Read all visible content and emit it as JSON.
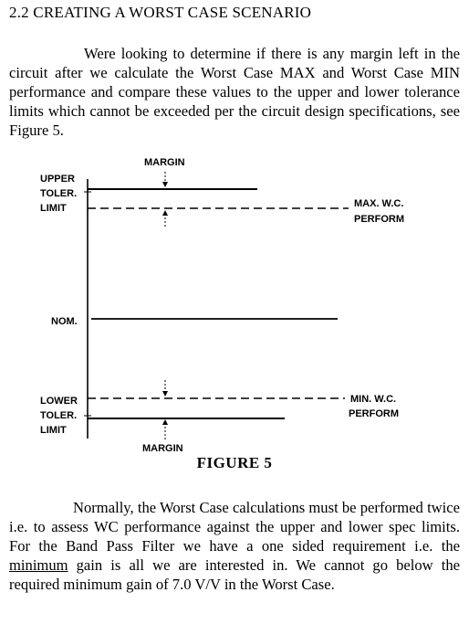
{
  "section": {
    "heading": "2.2 CREATING A WORST CASE SCENARIO"
  },
  "paragraph1": "Were looking to determine if there is any margin left in the circuit after we calculate the Worst Case MAX and Worst Case MIN performance and compare these values to the upper and lower tolerance limits which cannot be exceeded per the circuit design specifications, see Figure 5.",
  "figure": {
    "caption": "FIGURE 5",
    "labels": {
      "margin_top": "MARGIN",
      "upper_1": "UPPER",
      "upper_2": "TOLER.",
      "upper_3": "LIMIT",
      "max_1": "MAX. W.C.",
      "max_2": "PERFORM",
      "nom": "NOM.",
      "lower_1": "LOWER",
      "lower_2": "TOLER.",
      "lower_3": "LIMIT",
      "min_1": "MIN. W.C.",
      "min_2": "PERFORM",
      "margin_bottom": "MARGIN"
    }
  },
  "paragraph2": {
    "before": "Normally, the Worst Case calculations must be performed twice i.e. to assess WC performance against the upper and lower spec limits.  For the Band Pass Filter we have a one sided requirement i.e. the ",
    "emph": "minimum",
    "after": " gain is all we are interested in.  We cannot go below the required minimum gain  of 7.0 V/V in the Worst Case."
  }
}
